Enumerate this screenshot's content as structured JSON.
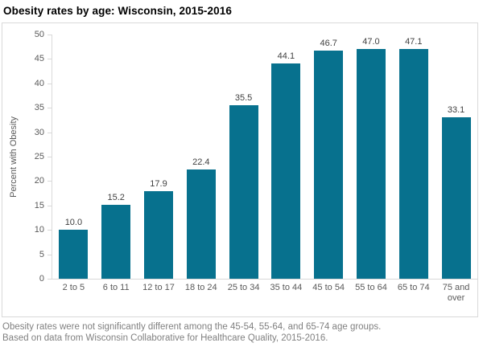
{
  "title": "Obesity rates by age: Wisconsin, 2015-2016",
  "chart_data": {
    "type": "bar",
    "title": "Obesity rates by age: Wisconsin, 2015-2016",
    "categories": [
      "2 to 5",
      "6 to 11",
      "12 to 17",
      "18 to 24",
      "25 to 34",
      "35 to 44",
      "45 to 54",
      "55 to 64",
      "65 to 74",
      "75 and over"
    ],
    "values": [
      10.0,
      15.2,
      17.9,
      22.4,
      35.5,
      44.1,
      46.7,
      47.0,
      47.1,
      33.1
    ],
    "value_labels": [
      "10.0",
      "15.2",
      "17.9",
      "22.4",
      "35.5",
      "44.1",
      "46.7",
      "47.0",
      "47.1",
      "33.1"
    ],
    "xlabel": "",
    "ylabel": "Percent with Obesity",
    "ylim": [
      0,
      50
    ],
    "ytick_step": 5,
    "yticks": [
      0,
      5,
      10,
      15,
      20,
      25,
      30,
      35,
      40,
      45,
      50
    ],
    "grid": false,
    "legend": "none",
    "bar_color": "#07718E",
    "axis_color": "#d9d9d9",
    "tick_label_color": "#595959",
    "value_label_color": "#404040"
  },
  "footnotes": {
    "line1": "Obesity rates were not significantly different among the 45-54, 55-64, and 65-74 age groups.",
    "line2": "Based on data from Wisconsin Collaborative for Healthcare Quality, 2015-2016."
  }
}
